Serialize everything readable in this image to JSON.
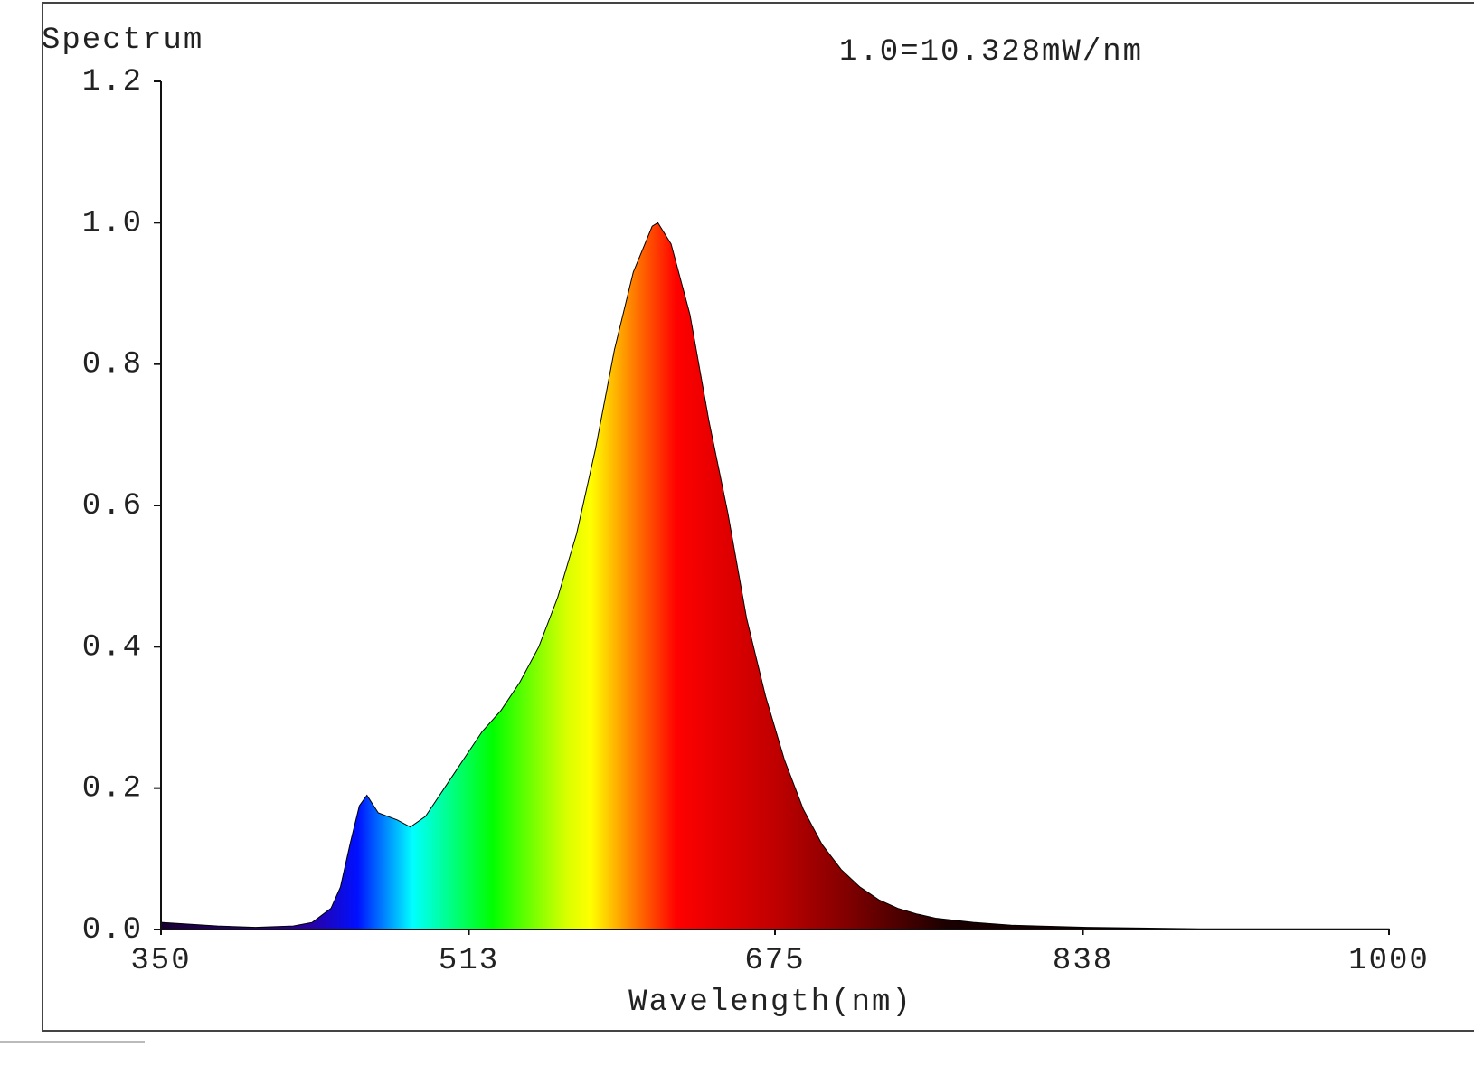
{
  "chart_data": {
    "type": "area",
    "title": "Spectrum",
    "annotation": "1.0=10.328mW/nm",
    "x_label": "Wavelength(nm)",
    "x": [
      350,
      380,
      400,
      420,
      430,
      440,
      445,
      450,
      455,
      459,
      465,
      475,
      482,
      490,
      500,
      510,
      520,
      530,
      540,
      550,
      560,
      570,
      580,
      590,
      600,
      610,
      613,
      620,
      630,
      640,
      650,
      660,
      670,
      680,
      690,
      700,
      710,
      720,
      730,
      740,
      750,
      760,
      780,
      800,
      840,
      900,
      1000
    ],
    "values": [
      0.01,
      0.005,
      0.003,
      0.005,
      0.01,
      0.03,
      0.06,
      0.12,
      0.175,
      0.19,
      0.165,
      0.155,
      0.145,
      0.16,
      0.2,
      0.24,
      0.28,
      0.31,
      0.35,
      0.4,
      0.47,
      0.56,
      0.68,
      0.82,
      0.93,
      0.995,
      1.0,
      0.97,
      0.87,
      0.72,
      0.59,
      0.44,
      0.33,
      0.24,
      0.17,
      0.12,
      0.085,
      0.06,
      0.042,
      0.03,
      0.022,
      0.016,
      0.01,
      0.006,
      0.003,
      0.001,
      0.001
    ],
    "xlim": [
      350,
      1000
    ],
    "xticks": [
      350,
      513,
      675,
      838,
      1000
    ],
    "ylim": [
      0,
      1.2
    ],
    "yticks": [
      {
        "value": 0,
        "label": "0.0"
      },
      0.2,
      0.4,
      0.6,
      0.8,
      {
        "value": 1,
        "label": "1.0"
      },
      1.2
    ],
    "grid": false
  }
}
